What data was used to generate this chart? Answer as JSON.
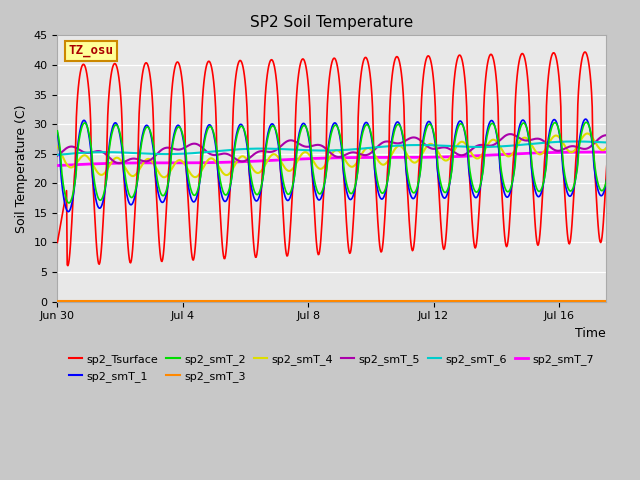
{
  "title": "SP2 Soil Temperature",
  "xlabel": "Time",
  "ylabel": "Soil Temperature (C)",
  "ylim": [
    0,
    45
  ],
  "yticks": [
    0,
    5,
    10,
    15,
    20,
    25,
    30,
    35,
    40,
    45
  ],
  "xtick_labels": [
    "Jun 30",
    "Jul 4",
    "Jul 8",
    "Jul 12",
    "Jul 16"
  ],
  "xtick_positions": [
    0,
    4,
    8,
    12,
    16
  ],
  "annotation_text": "TZ_osu",
  "annotation_box_color": "#FFFF99",
  "annotation_box_edge": "#CC8800",
  "annotation_text_color": "#AA0000",
  "series": {
    "sp2_Tsurface": {
      "color": "#FF0000",
      "lw": 1.2
    },
    "sp2_smT_1": {
      "color": "#0000FF",
      "lw": 1.2
    },
    "sp2_smT_2": {
      "color": "#00DD00",
      "lw": 1.2
    },
    "sp2_smT_3": {
      "color": "#FF8800",
      "lw": 1.5
    },
    "sp2_smT_4": {
      "color": "#DDDD00",
      "lw": 1.5
    },
    "sp2_smT_5": {
      "color": "#AA00AA",
      "lw": 1.5
    },
    "sp2_smT_6": {
      "color": "#00CCCC",
      "lw": 1.5
    },
    "sp2_smT_7": {
      "color": "#FF00FF",
      "lw": 2.0
    }
  },
  "legend_order": [
    "sp2_Tsurface",
    "sp2_smT_1",
    "sp2_smT_2",
    "sp2_smT_3",
    "sp2_smT_4",
    "sp2_smT_5",
    "sp2_smT_6",
    "sp2_smT_7"
  ]
}
